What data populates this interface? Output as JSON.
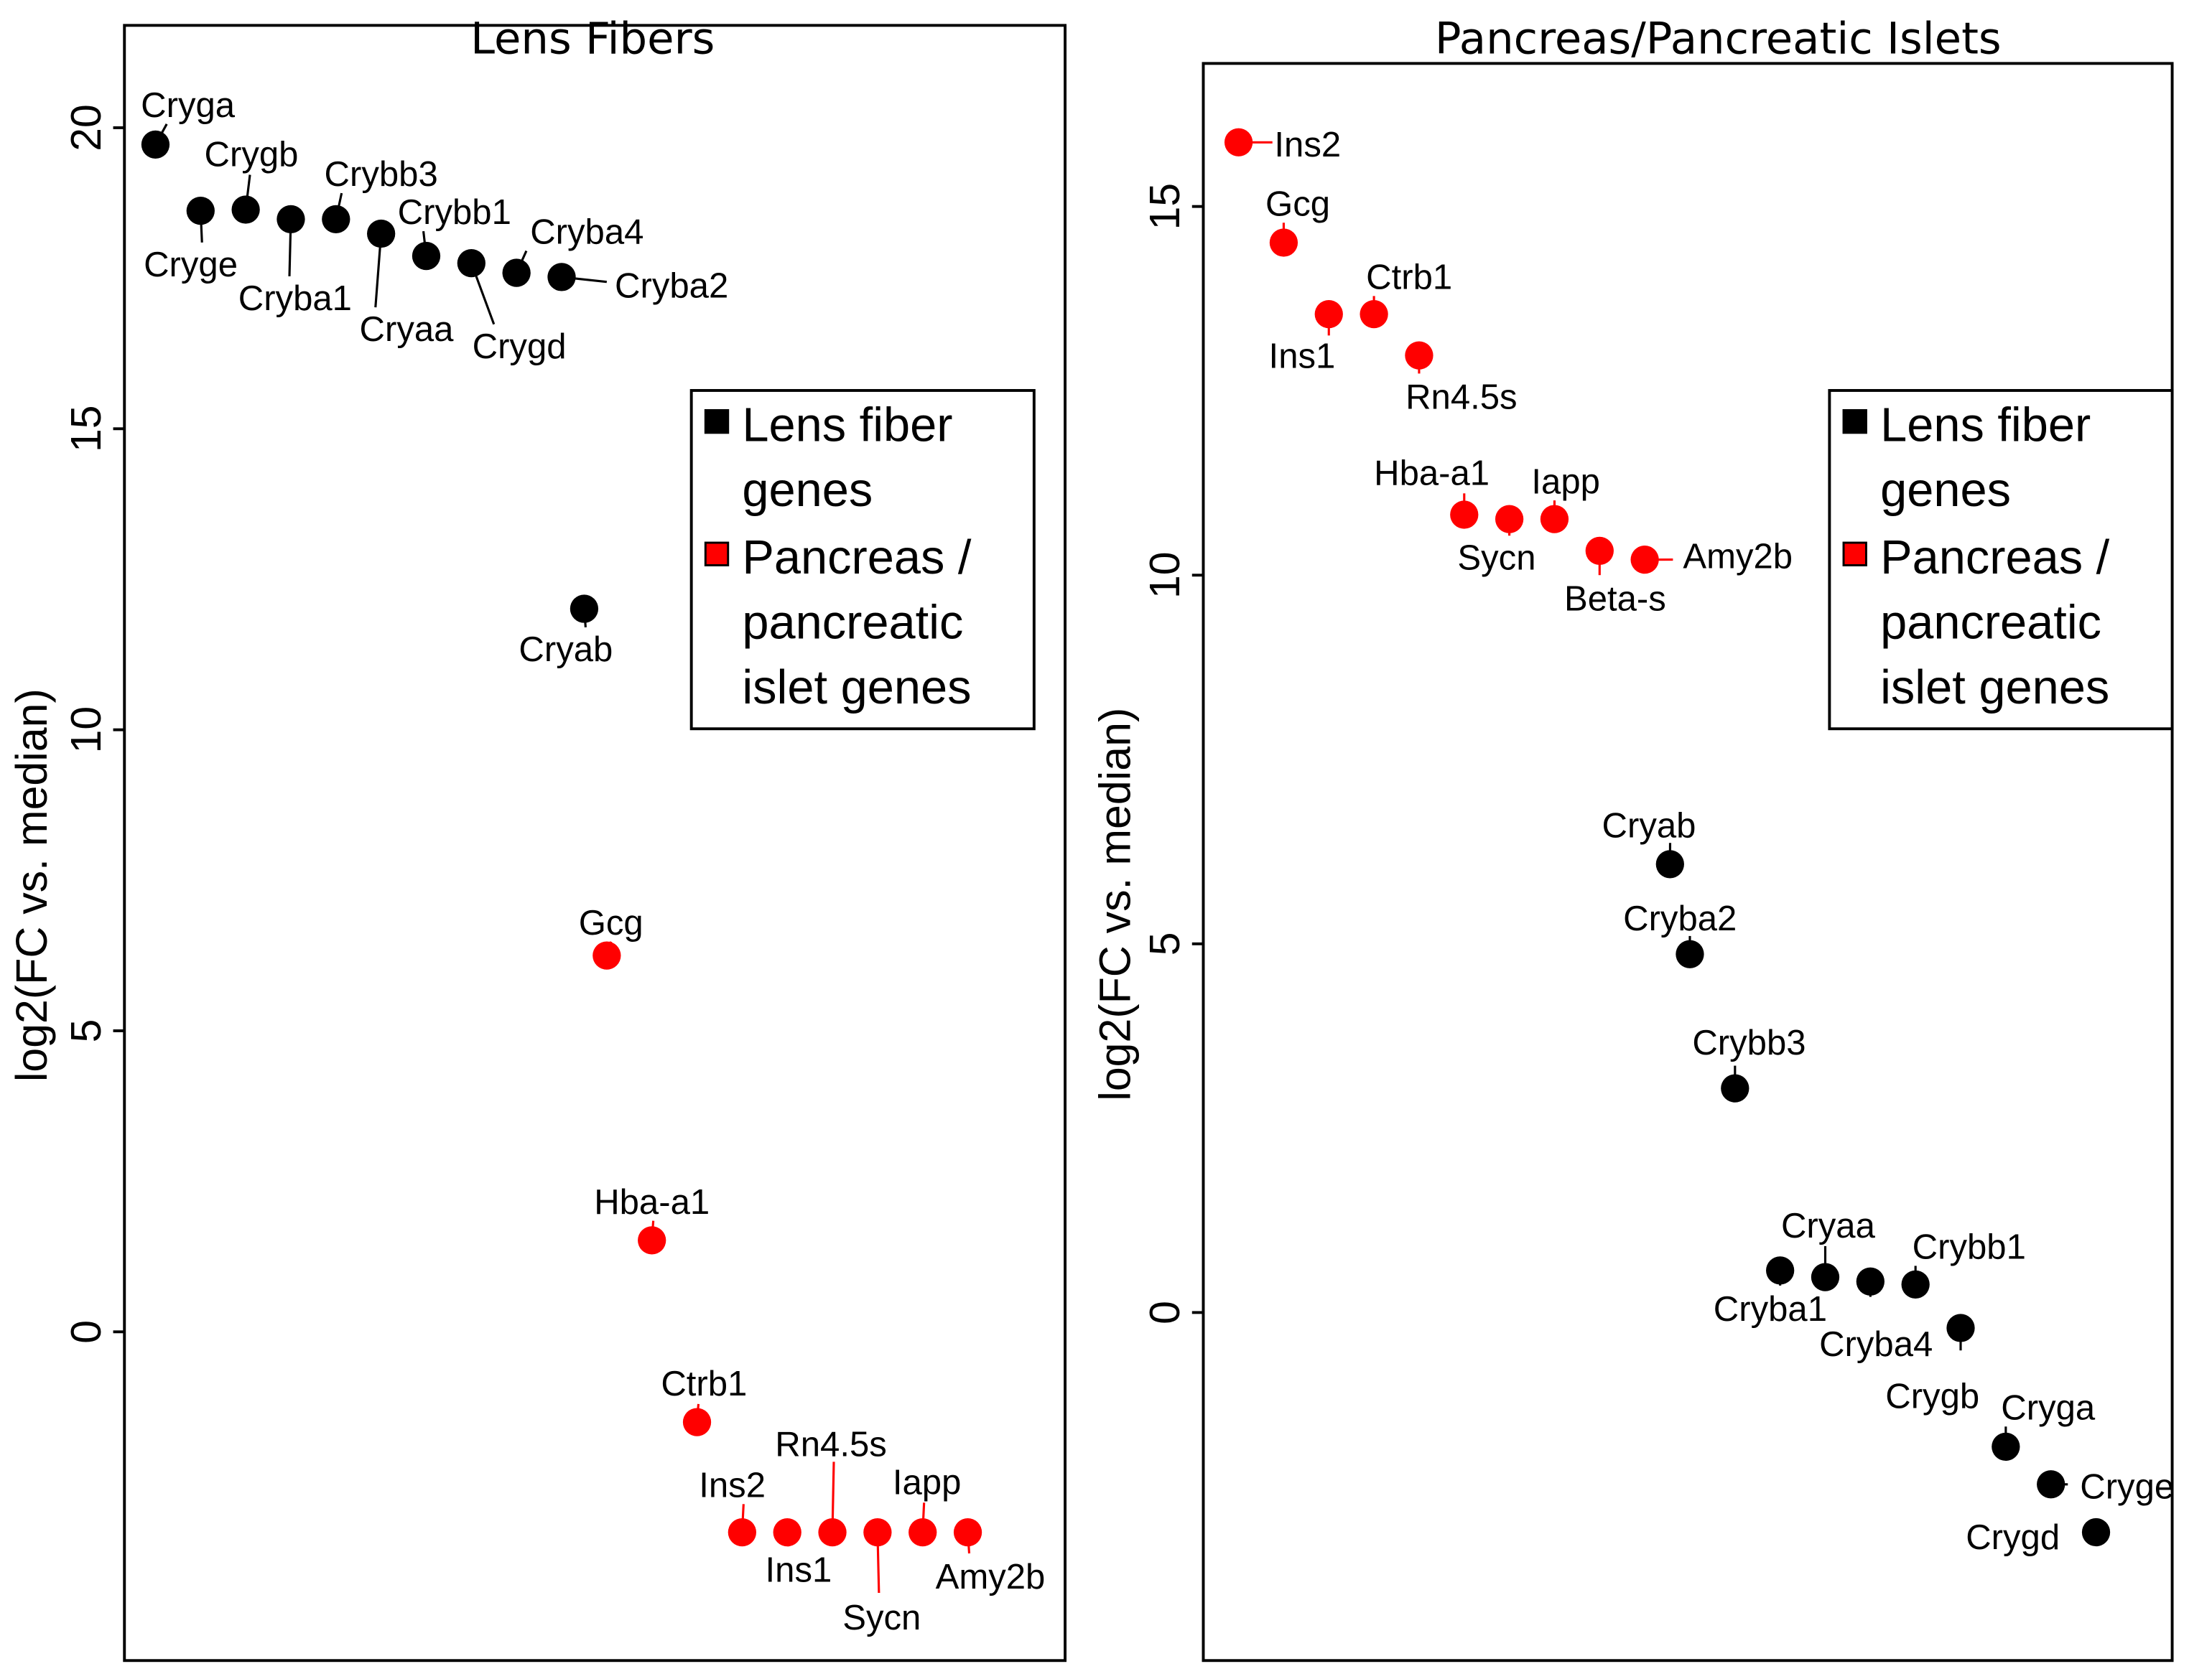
{
  "chart_data": [
    {
      "type": "scatter",
      "title": "Lens Fibers",
      "xlabel": "",
      "ylabel": "log2(FC vs. median)",
      "ylim": [
        -5.46,
        21.7
      ],
      "yticks": [
        0,
        5,
        10,
        15,
        20
      ],
      "grid": false,
      "legend": {
        "placement": "right",
        "entries": [
          {
            "label_lines": [
              "Lens fiber",
              " genes"
            ],
            "color": "#000000"
          },
          {
            "label_lines": [
              "Pancreas /",
              "pancreatic",
              "islet genes"
            ],
            "color": "#ff0000"
          }
        ]
      },
      "points": [
        {
          "label": "Cryga",
          "x": 1,
          "y": 19.72,
          "group": "lens"
        },
        {
          "label": "Cryge",
          "x": 2,
          "y": 18.62,
          "group": "lens"
        },
        {
          "label": "Crygb",
          "x": 3,
          "y": 18.64,
          "group": "lens"
        },
        {
          "label": "Cryba1",
          "x": 4,
          "y": 18.48,
          "group": "lens"
        },
        {
          "label": "Crybb3",
          "x": 5,
          "y": 18.48,
          "group": "lens"
        },
        {
          "label": "Cryaa",
          "x": 6,
          "y": 18.24,
          "group": "lens"
        },
        {
          "label": "Crybb1",
          "x": 7,
          "y": 17.87,
          "group": "lens"
        },
        {
          "label": "Crygd",
          "x": 8,
          "y": 17.75,
          "group": "lens"
        },
        {
          "label": "Cryba4",
          "x": 9,
          "y": 17.59,
          "group": "lens"
        },
        {
          "label": "Cryba2",
          "x": 10,
          "y": 17.52,
          "group": "lens"
        },
        {
          "label": "Cryab",
          "x": 10.5,
          "y": 12.01,
          "group": "lens"
        },
        {
          "label": "Gcg",
          "x": 11,
          "y": 6.25,
          "group": "pancreas"
        },
        {
          "label": "Hba-a1",
          "x": 12,
          "y": 1.52,
          "group": "pancreas"
        },
        {
          "label": "Ctrb1",
          "x": 13,
          "y": -1.5,
          "group": "pancreas"
        },
        {
          "label": "Ins2",
          "x": 14,
          "y": -3.33,
          "group": "pancreas"
        },
        {
          "label": "Ins1",
          "x": 15,
          "y": -3.33,
          "group": "pancreas"
        },
        {
          "label": "Rn4.5s",
          "x": 16,
          "y": -3.33,
          "group": "pancreas"
        },
        {
          "label": "Sycn",
          "x": 17,
          "y": -3.33,
          "group": "pancreas"
        },
        {
          "label": "Iapp",
          "x": 18,
          "y": -3.33,
          "group": "pancreas"
        },
        {
          "label": "Amy2b",
          "x": 19,
          "y": -3.33,
          "group": "pancreas"
        }
      ]
    },
    {
      "type": "scatter",
      "title": "Pancreas/Pancreatic Islets",
      "xlabel": "",
      "ylabel": "log2(FC vs. median)",
      "ylim": [
        -4.72,
        16.94
      ],
      "yticks": [
        0,
        5,
        10,
        15
      ],
      "grid": false,
      "legend": {
        "placement": "right",
        "entries": [
          {
            "label_lines": [
              "Lens fiber",
              "genes"
            ],
            "color": "#000000"
          },
          {
            "label_lines": [
              "Pancreas /",
              "pancreatic",
              "islet genes"
            ],
            "color": "#ff0000"
          }
        ]
      },
      "points": [
        {
          "label": "Ins2",
          "x": 1,
          "y": 15.87,
          "group": "pancreas"
        },
        {
          "label": "Gcg",
          "x": 2,
          "y": 14.51,
          "group": "pancreas"
        },
        {
          "label": "Ins1",
          "x": 3,
          "y": 13.54,
          "group": "pancreas"
        },
        {
          "label": "Ctrb1",
          "x": 4,
          "y": 13.54,
          "group": "pancreas"
        },
        {
          "label": "Rn4.5s",
          "x": 5,
          "y": 12.98,
          "group": "pancreas"
        },
        {
          "label": "Hba-a1",
          "x": 6,
          "y": 10.82,
          "group": "pancreas"
        },
        {
          "label": "Sycn",
          "x": 7,
          "y": 10.76,
          "group": "pancreas"
        },
        {
          "label": "Iapp",
          "x": 8,
          "y": 10.76,
          "group": "pancreas"
        },
        {
          "label": "Beta-s",
          "x": 9,
          "y": 10.33,
          "group": "pancreas"
        },
        {
          "label": "Amy2b",
          "x": 10,
          "y": 10.21,
          "group": "pancreas"
        },
        {
          "label": "Cryab",
          "x": 10.56,
          "y": 6.08,
          "group": "lens"
        },
        {
          "label": "Cryba2",
          "x": 11,
          "y": 4.86,
          "group": "lens"
        },
        {
          "label": "Crybb3",
          "x": 12,
          "y": 3.04,
          "group": "lens"
        },
        {
          "label": "Cryba1",
          "x": 13,
          "y": 0.57,
          "group": "lens"
        },
        {
          "label": "Cryaa",
          "x": 14,
          "y": 0.48,
          "group": "lens"
        },
        {
          "label": "Cryba4",
          "x": 15,
          "y": 0.42,
          "group": "lens"
        },
        {
          "label": "Crybb1",
          "x": 16,
          "y": 0.38,
          "group": "lens"
        },
        {
          "label": "Crygb",
          "x": 17,
          "y": -0.21,
          "group": "lens"
        },
        {
          "label": "Cryga",
          "x": 18,
          "y": -1.82,
          "group": "lens"
        },
        {
          "label": "Cryge",
          "x": 19,
          "y": -2.33,
          "group": "lens"
        },
        {
          "label": "Crygd",
          "x": 20,
          "y": -2.98,
          "group": "lens"
        }
      ]
    }
  ],
  "colors": {
    "lens": "#000000",
    "pancreas": "#ff0000"
  }
}
